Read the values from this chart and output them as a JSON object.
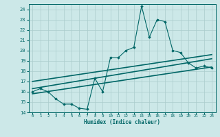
{
  "xlabel": "Humidex (Indice chaleur)",
  "bg_color": "#cce8e8",
  "grid_color": "#aacccc",
  "line_color": "#006666",
  "xlim": [
    -0.5,
    23.5
  ],
  "ylim": [
    14,
    24.5
  ],
  "yticks": [
    14,
    15,
    16,
    17,
    18,
    19,
    20,
    21,
    22,
    23,
    24
  ],
  "xticks": [
    0,
    1,
    2,
    3,
    4,
    5,
    6,
    7,
    8,
    9,
    10,
    11,
    12,
    13,
    14,
    15,
    16,
    17,
    18,
    19,
    20,
    21,
    22,
    23
  ],
  "main_x": [
    0,
    1,
    2,
    3,
    4,
    5,
    6,
    7,
    8,
    9,
    10,
    11,
    12,
    13,
    14,
    15,
    16,
    17,
    18,
    19,
    20,
    21,
    22,
    23
  ],
  "main_y": [
    16.0,
    16.3,
    16.0,
    15.3,
    14.8,
    14.8,
    14.4,
    14.3,
    17.3,
    16.0,
    19.3,
    19.3,
    20.0,
    20.3,
    24.3,
    21.3,
    23.0,
    22.8,
    20.0,
    19.8,
    18.8,
    18.3,
    18.5,
    18.3
  ],
  "trend1_x": [
    0,
    23
  ],
  "trend1_y": [
    16.3,
    19.2
  ],
  "trend2_x": [
    0,
    23
  ],
  "trend2_y": [
    17.0,
    19.6
  ],
  "trend3_x": [
    0,
    23
  ],
  "trend3_y": [
    15.8,
    18.4
  ]
}
